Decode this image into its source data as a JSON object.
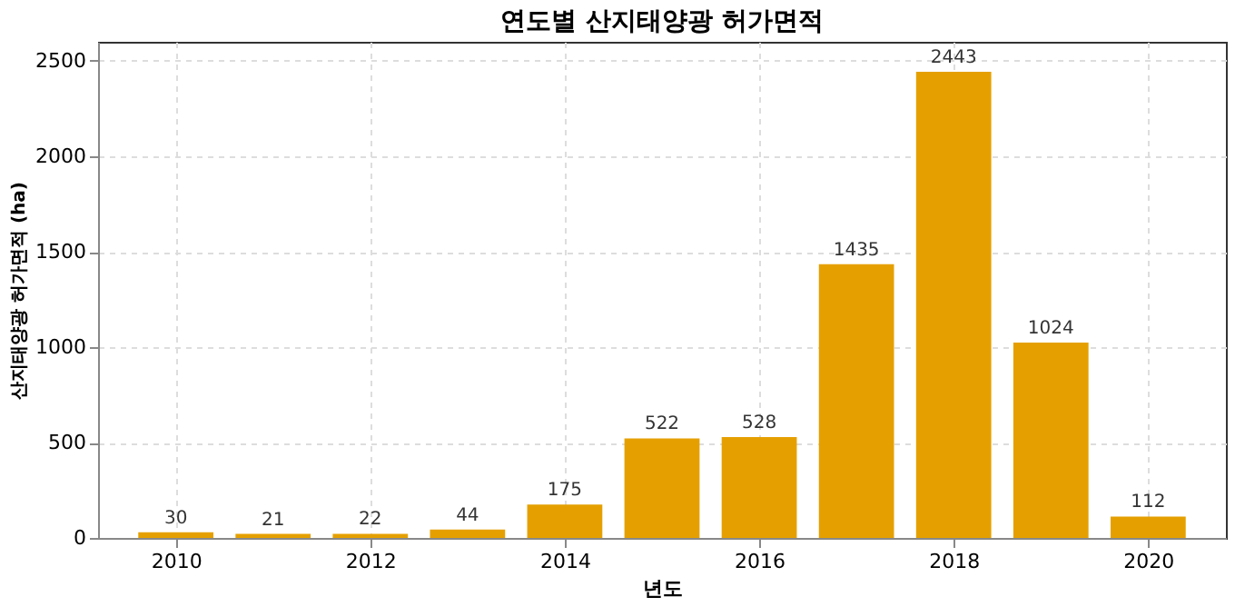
{
  "chart_data": {
    "type": "bar",
    "title": "연도별 산지태양광 허가면적",
    "xlabel": "년도",
    "ylabel": "산지태양광 허가면적 (ha)",
    "x": [
      2010,
      2011,
      2012,
      2013,
      2014,
      2015,
      2016,
      2017,
      2018,
      2019,
      2020
    ],
    "values": [
      30,
      21,
      22,
      44,
      175,
      522,
      528,
      1435,
      2443,
      1024,
      112
    ],
    "color": "#e5a000",
    "xlim": [
      2009.2,
      2020.8
    ],
    "xticks": [
      2010,
      2012,
      2014,
      2016,
      2018,
      2020
    ],
    "ylim": [
      0,
      2600
    ],
    "yticks": [
      0,
      500,
      1000,
      1500,
      2000,
      2500
    ],
    "grid": true,
    "data_labels": true
  }
}
